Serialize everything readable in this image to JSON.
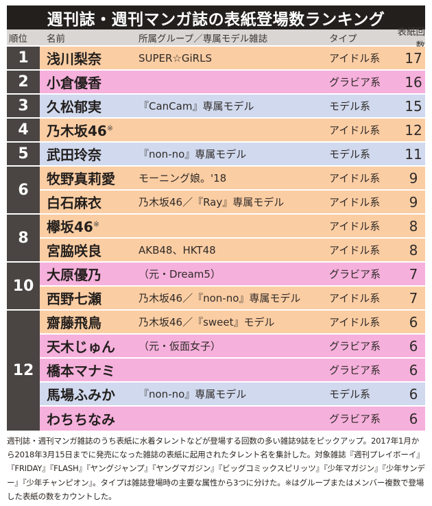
{
  "title": "週刊誌・週刊マンガ誌の表紙登場数ランキング",
  "columns": {
    "rank": "順位",
    "name": "名前",
    "affiliation": "所属グループ／専属モデル雑誌",
    "type": "タイプ",
    "count": "表紙回数"
  },
  "type_colors": {
    "アイドル系": "#fbcda3",
    "グラビア系": "#f6b0dc",
    "モデル系": "#d0d9ee",
    "rank_bg": "#4a4542",
    "title_bg": "#231f1d",
    "header_bg": "#d9d6d3"
  },
  "rank_groups": [
    {
      "rank": "1",
      "span": 1
    },
    {
      "rank": "2",
      "span": 1
    },
    {
      "rank": "3",
      "span": 1
    },
    {
      "rank": "4",
      "span": 1
    },
    {
      "rank": "5",
      "span": 1
    },
    {
      "rank": "6",
      "span": 2
    },
    {
      "rank": "8",
      "span": 2
    },
    {
      "rank": "10",
      "span": 2
    },
    {
      "rank": "12",
      "span": 5
    }
  ],
  "rows": [
    {
      "name": "浅川梨奈",
      "mark": "",
      "affiliation": "SUPER☆GiRLS",
      "type": "アイドル系",
      "count": "17",
      "color": "idol"
    },
    {
      "name": "小倉優香",
      "mark": "",
      "affiliation": "",
      "type": "グラビア系",
      "count": "16",
      "color": "gravure"
    },
    {
      "name": "久松郁実",
      "mark": "",
      "affiliation": "『CanCam』専属モデル",
      "type": "モデル系",
      "count": "15",
      "color": "model"
    },
    {
      "name": "乃木坂46",
      "mark": "※",
      "affiliation": "",
      "type": "アイドル系",
      "count": "12",
      "color": "idol"
    },
    {
      "name": "武田玲奈",
      "mark": "",
      "affiliation": "『non-no』専属モデル",
      "type": "モデル系",
      "count": "11",
      "color": "model"
    },
    {
      "name": "牧野真莉愛",
      "mark": "",
      "affiliation": "モーニング娘。'18",
      "type": "アイドル系",
      "count": "9",
      "color": "idol"
    },
    {
      "name": "白石麻衣",
      "mark": "",
      "affiliation": "乃木坂46／『Ray』専属モデル",
      "type": "アイドル系",
      "count": "9",
      "color": "idol"
    },
    {
      "name": "欅坂46",
      "mark": "※",
      "affiliation": "",
      "type": "アイドル系",
      "count": "8",
      "color": "idol"
    },
    {
      "name": "宮脇咲良",
      "mark": "",
      "affiliation": "AKB48、HKT48",
      "type": "アイドル系",
      "count": "8",
      "color": "idol"
    },
    {
      "name": "大原優乃",
      "mark": "",
      "affiliation": "（元・Dream5）",
      "type": "グラビア系",
      "count": "7",
      "color": "gravure"
    },
    {
      "name": "西野七瀬",
      "mark": "",
      "affiliation": "乃木坂46／『non-no』専属モデル",
      "type": "アイドル系",
      "count": "7",
      "color": "idol"
    },
    {
      "name": "齋藤飛鳥",
      "mark": "",
      "affiliation": "乃木坂46／『sweet』モデル",
      "type": "アイドル系",
      "count": "6",
      "color": "idol"
    },
    {
      "name": "天木じゅん",
      "mark": "",
      "affiliation": "（元・仮面女子）",
      "type": "グラビア系",
      "count": "6",
      "color": "gravure"
    },
    {
      "name": "橋本マナミ",
      "mark": "",
      "affiliation": "",
      "type": "グラビア系",
      "count": "6",
      "color": "gravure"
    },
    {
      "name": "馬場ふみか",
      "mark": "",
      "affiliation": "『non-no』専属モデル",
      "type": "モデル系",
      "count": "6",
      "color": "model"
    },
    {
      "name": "わちちなみ",
      "mark": "",
      "affiliation": "",
      "type": "グラビア系",
      "count": "6",
      "color": "gravure"
    }
  ],
  "footnote": "週刊誌・週刊マンガ雑誌のうち表紙に水着タレントなどが登場する回数の多い雑誌9誌をピックアップ。2017年1月から2018年3月15日までに発売になった雑誌の表紙に起用されたタレント名を集計した。対象雑誌『週刊プレイボーイ』『FRIDAY』『FLASH』『ヤングジャンプ』『ヤングマガジン』『ビッグコミックスピリッツ』『少年マガジン』『少年サンデー』『少年チャンピオン』。タイプは雑誌登場時の主要な属性から3つに分けた。※はグループまたはメンバー複数で登場した表紙の数をカウントした。",
  "chart_data": {
    "type": "table",
    "title": "週刊誌・週刊マンガ誌の表紙登場数ランキング",
    "columns": [
      "順位",
      "名前",
      "所属グループ／専属モデル雑誌",
      "タイプ",
      "表紙回数"
    ],
    "rows": [
      [
        "1",
        "浅川梨奈",
        "SUPER☆GiRLS",
        "アイドル系",
        17
      ],
      [
        "2",
        "小倉優香",
        "",
        "グラビア系",
        16
      ],
      [
        "3",
        "久松郁実",
        "『CanCam』専属モデル",
        "モデル系",
        15
      ],
      [
        "4",
        "乃木坂46※",
        "",
        "アイドル系",
        12
      ],
      [
        "5",
        "武田玲奈",
        "『non-no』専属モデル",
        "モデル系",
        11
      ],
      [
        "6",
        "牧野真莉愛",
        "モーニング娘。'18",
        "アイドル系",
        9
      ],
      [
        "6",
        "白石麻衣",
        "乃木坂46／『Ray』専属モデル",
        "アイドル系",
        9
      ],
      [
        "8",
        "欅坂46※",
        "",
        "アイドル系",
        8
      ],
      [
        "8",
        "宮脇咲良",
        "AKB48、HKT48",
        "アイドル系",
        8
      ],
      [
        "10",
        "大原優乃",
        "（元・Dream5）",
        "グラビア系",
        7
      ],
      [
        "10",
        "西野七瀬",
        "乃木坂46／『non-no』専属モデル",
        "アイドル系",
        7
      ],
      [
        "12",
        "齋藤飛鳥",
        "乃木坂46／『sweet』モデル",
        "アイドル系",
        6
      ],
      [
        "12",
        "天木じゅん",
        "（元・仮面女子）",
        "グラビア系",
        6
      ],
      [
        "12",
        "橋本マナミ",
        "",
        "グラビア系",
        6
      ],
      [
        "12",
        "馬場ふみか",
        "『non-no』専属モデル",
        "モデル系",
        6
      ],
      [
        "12",
        "わちちなみ",
        "",
        "グラビア系",
        6
      ]
    ]
  }
}
